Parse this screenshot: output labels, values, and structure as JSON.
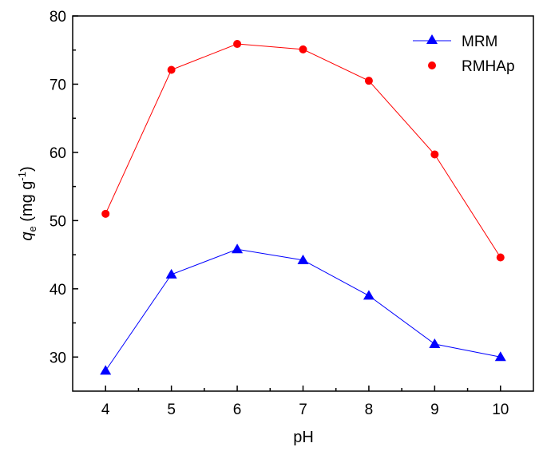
{
  "chart_data": {
    "type": "line",
    "title": "",
    "xlabel": "pH",
    "ylabel": {
      "symbol": "q",
      "subscript": "e",
      "unit_open": " (mg g",
      "unit_exp": "-1",
      "unit_close": ")"
    },
    "x": [
      4,
      5,
      6,
      7,
      8,
      9,
      10
    ],
    "xlim": [
      3.5,
      10.5
    ],
    "ylim": [
      25,
      80
    ],
    "xticks": [
      4,
      5,
      6,
      7,
      8,
      9,
      10
    ],
    "yticks": [
      30,
      40,
      50,
      60,
      70,
      80
    ],
    "grid": false,
    "legend_position": "top-right",
    "series": [
      {
        "name": "MRM",
        "values": [
          28.0,
          42.1,
          45.8,
          44.2,
          39.0,
          31.9,
          30.0
        ],
        "color": "#0000ff",
        "marker": "triangle"
      },
      {
        "name": "RMHAp",
        "values": [
          51.0,
          72.1,
          75.9,
          75.1,
          70.5,
          59.7,
          44.6
        ],
        "color": "#ff0000",
        "marker": "circle"
      }
    ]
  }
}
